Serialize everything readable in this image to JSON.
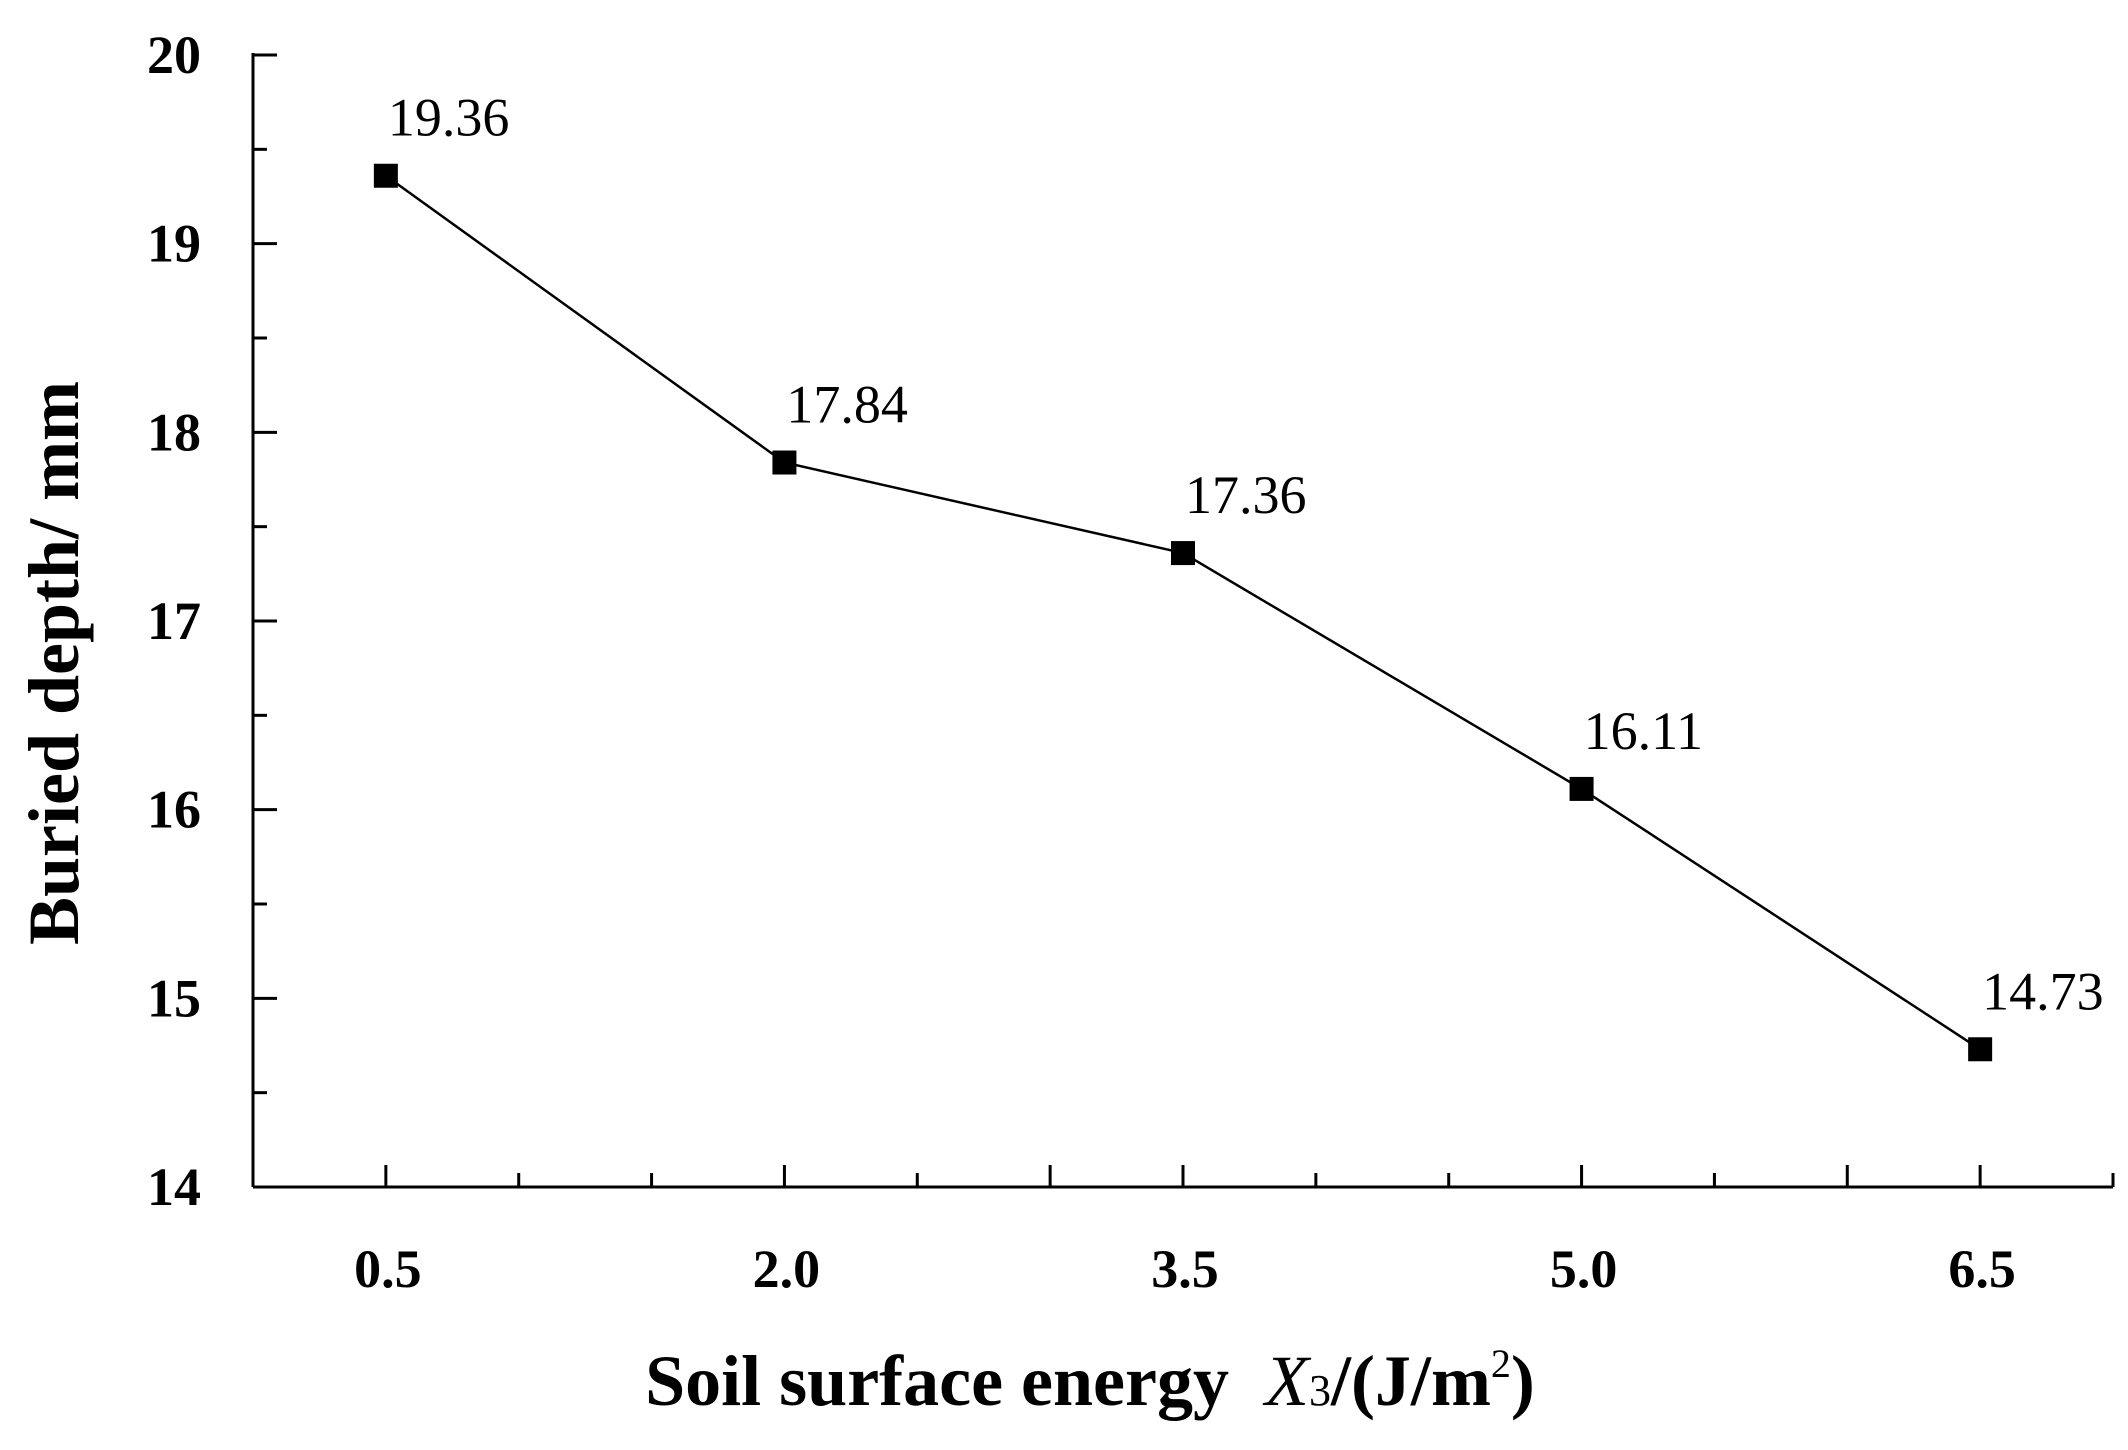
{
  "chart_data": {
    "type": "line",
    "title": "",
    "x": [
      "0.5",
      "2.0",
      "3.5",
      "5.0",
      "6.5"
    ],
    "x_values": [
      0.5,
      2.0,
      3.5,
      5.0,
      6.5
    ],
    "xlim": [
      0,
      7.0
    ],
    "series": [
      {
        "name": "Buried depth",
        "values": [
          19.36,
          17.84,
          17.36,
          16.11,
          14.73
        ],
        "labels": [
          "19.36",
          "17.84",
          "17.36",
          "16.11",
          "14.73"
        ]
      }
    ],
    "ylim": [
      14,
      20
    ],
    "yticks": [
      "14",
      "15",
      "16",
      "17",
      "18",
      "19",
      "20"
    ],
    "xlabel": {
      "prefix": "Soil surface energy  ",
      "var": "X",
      "sub": "3",
      "unit_open": "/(J/m",
      "sup": "2",
      "unit_close": ")"
    },
    "ylabel": "Buried depth/ mm",
    "grid": false
  }
}
